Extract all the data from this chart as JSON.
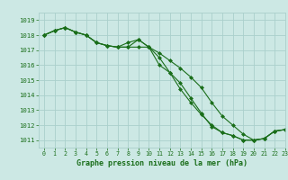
{
  "title": "Graphe pression niveau de la mer (hPa)",
  "background_color": "#cce8e4",
  "grid_color": "#aad0cc",
  "line_color": "#1a6e1a",
  "text_color": "#1a6e1a",
  "xlim": [
    -0.5,
    23
  ],
  "ylim": [
    1010.5,
    1019.5
  ],
  "yticks": [
    1011,
    1012,
    1013,
    1014,
    1015,
    1016,
    1017,
    1018,
    1019
  ],
  "xticks": [
    0,
    1,
    2,
    3,
    4,
    5,
    6,
    7,
    8,
    9,
    10,
    11,
    12,
    13,
    14,
    15,
    16,
    17,
    18,
    19,
    20,
    21,
    22,
    23
  ],
  "series": [
    [
      1018.0,
      1018.3,
      1018.5,
      1018.2,
      1018.0,
      1017.5,
      1017.3,
      1017.2,
      1017.2,
      1017.2,
      1017.2,
      1016.0,
      1015.5,
      1014.8,
      1013.8,
      1012.8,
      1011.9,
      1011.5,
      1011.3,
      1011.0,
      1011.0,
      1011.1,
      1011.6,
      1011.7
    ],
    [
      1018.0,
      1018.3,
      1018.5,
      1018.2,
      1018.0,
      1017.5,
      1017.3,
      1017.2,
      1017.2,
      1017.7,
      1017.2,
      1016.5,
      1015.5,
      1014.4,
      1013.5,
      1012.7,
      1012.0,
      1011.5,
      1011.3,
      1011.0,
      1011.0,
      1011.1,
      1011.6,
      1011.7
    ],
    [
      1018.0,
      1018.3,
      1018.5,
      1018.2,
      1018.0,
      1017.5,
      1017.3,
      1017.2,
      1017.5,
      1017.7,
      1017.2,
      1016.8,
      1016.3,
      1015.8,
      1015.2,
      1014.5,
      1013.5,
      1012.6,
      1012.0,
      1011.4,
      1011.0,
      1011.1,
      1011.6,
      1011.7
    ]
  ]
}
